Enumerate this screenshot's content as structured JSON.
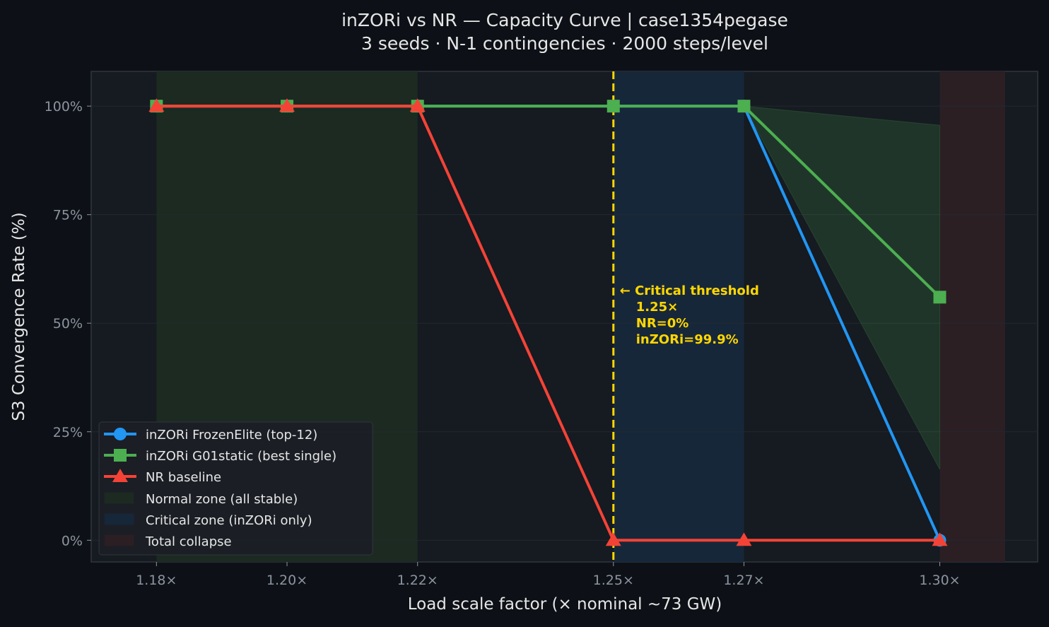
{
  "chart_data": {
    "type": "line",
    "title": "inZORi vs NR — Capacity Curve | case1354pegase",
    "subtitle": "3 seeds · N-1 contingencies · 2000 steps/level",
    "xlabel": "Load scale factor (× nominal ~73 GW)",
    "ylabel": "S3 Convergence Rate (%)",
    "x": [
      1.18,
      1.2,
      1.22,
      1.25,
      1.27,
      1.3
    ],
    "x_tick_labels": [
      "1.18×",
      "1.20×",
      "1.22×",
      "1.25×",
      "1.27×",
      "1.30×"
    ],
    "y_ticks": [
      0,
      25,
      50,
      75,
      100
    ],
    "y_tick_labels": [
      "0%",
      "25%",
      "50%",
      "75%",
      "100%"
    ],
    "xlim": [
      1.17,
      1.315
    ],
    "ylim": [
      -5,
      108
    ],
    "grid": true,
    "legend_position": "lower-left",
    "series": [
      {
        "name": "inZORi FrozenElite (top-12)",
        "marker": "circle",
        "color": "#2196f3",
        "values": [
          100,
          100,
          100,
          100,
          100,
          0
        ]
      },
      {
        "name": "inZORi G01static (best single)",
        "marker": "square",
        "color": "#4caf50",
        "values": [
          100,
          100,
          100,
          100,
          100,
          56
        ],
        "band_lower": [
          100,
          100,
          100,
          100,
          100,
          16.3
        ],
        "band_upper": [
          100,
          100,
          100,
          100,
          100,
          95.6
        ]
      },
      {
        "name": "NR baseline",
        "marker": "triangle",
        "color": "#f44336",
        "values": [
          100,
          100,
          100,
          0,
          0,
          0
        ]
      }
    ],
    "zones": [
      {
        "name": "Normal zone (all stable)",
        "from": 1.18,
        "to": 1.22,
        "color": "#1c2a22"
      },
      {
        "name": "Critical zone (inZORi only)",
        "from": 1.25,
        "to": 1.27,
        "color": "#17273a"
      },
      {
        "name": "Total collapse",
        "from": 1.3,
        "to": 1.31,
        "color": "#2b1f24"
      }
    ],
    "threshold": {
      "x": 1.25,
      "color": "#ffd700",
      "annotation": [
        "← Critical threshold",
        "1.25×",
        "NR=0%",
        "inZORi=99.9%"
      ]
    }
  }
}
